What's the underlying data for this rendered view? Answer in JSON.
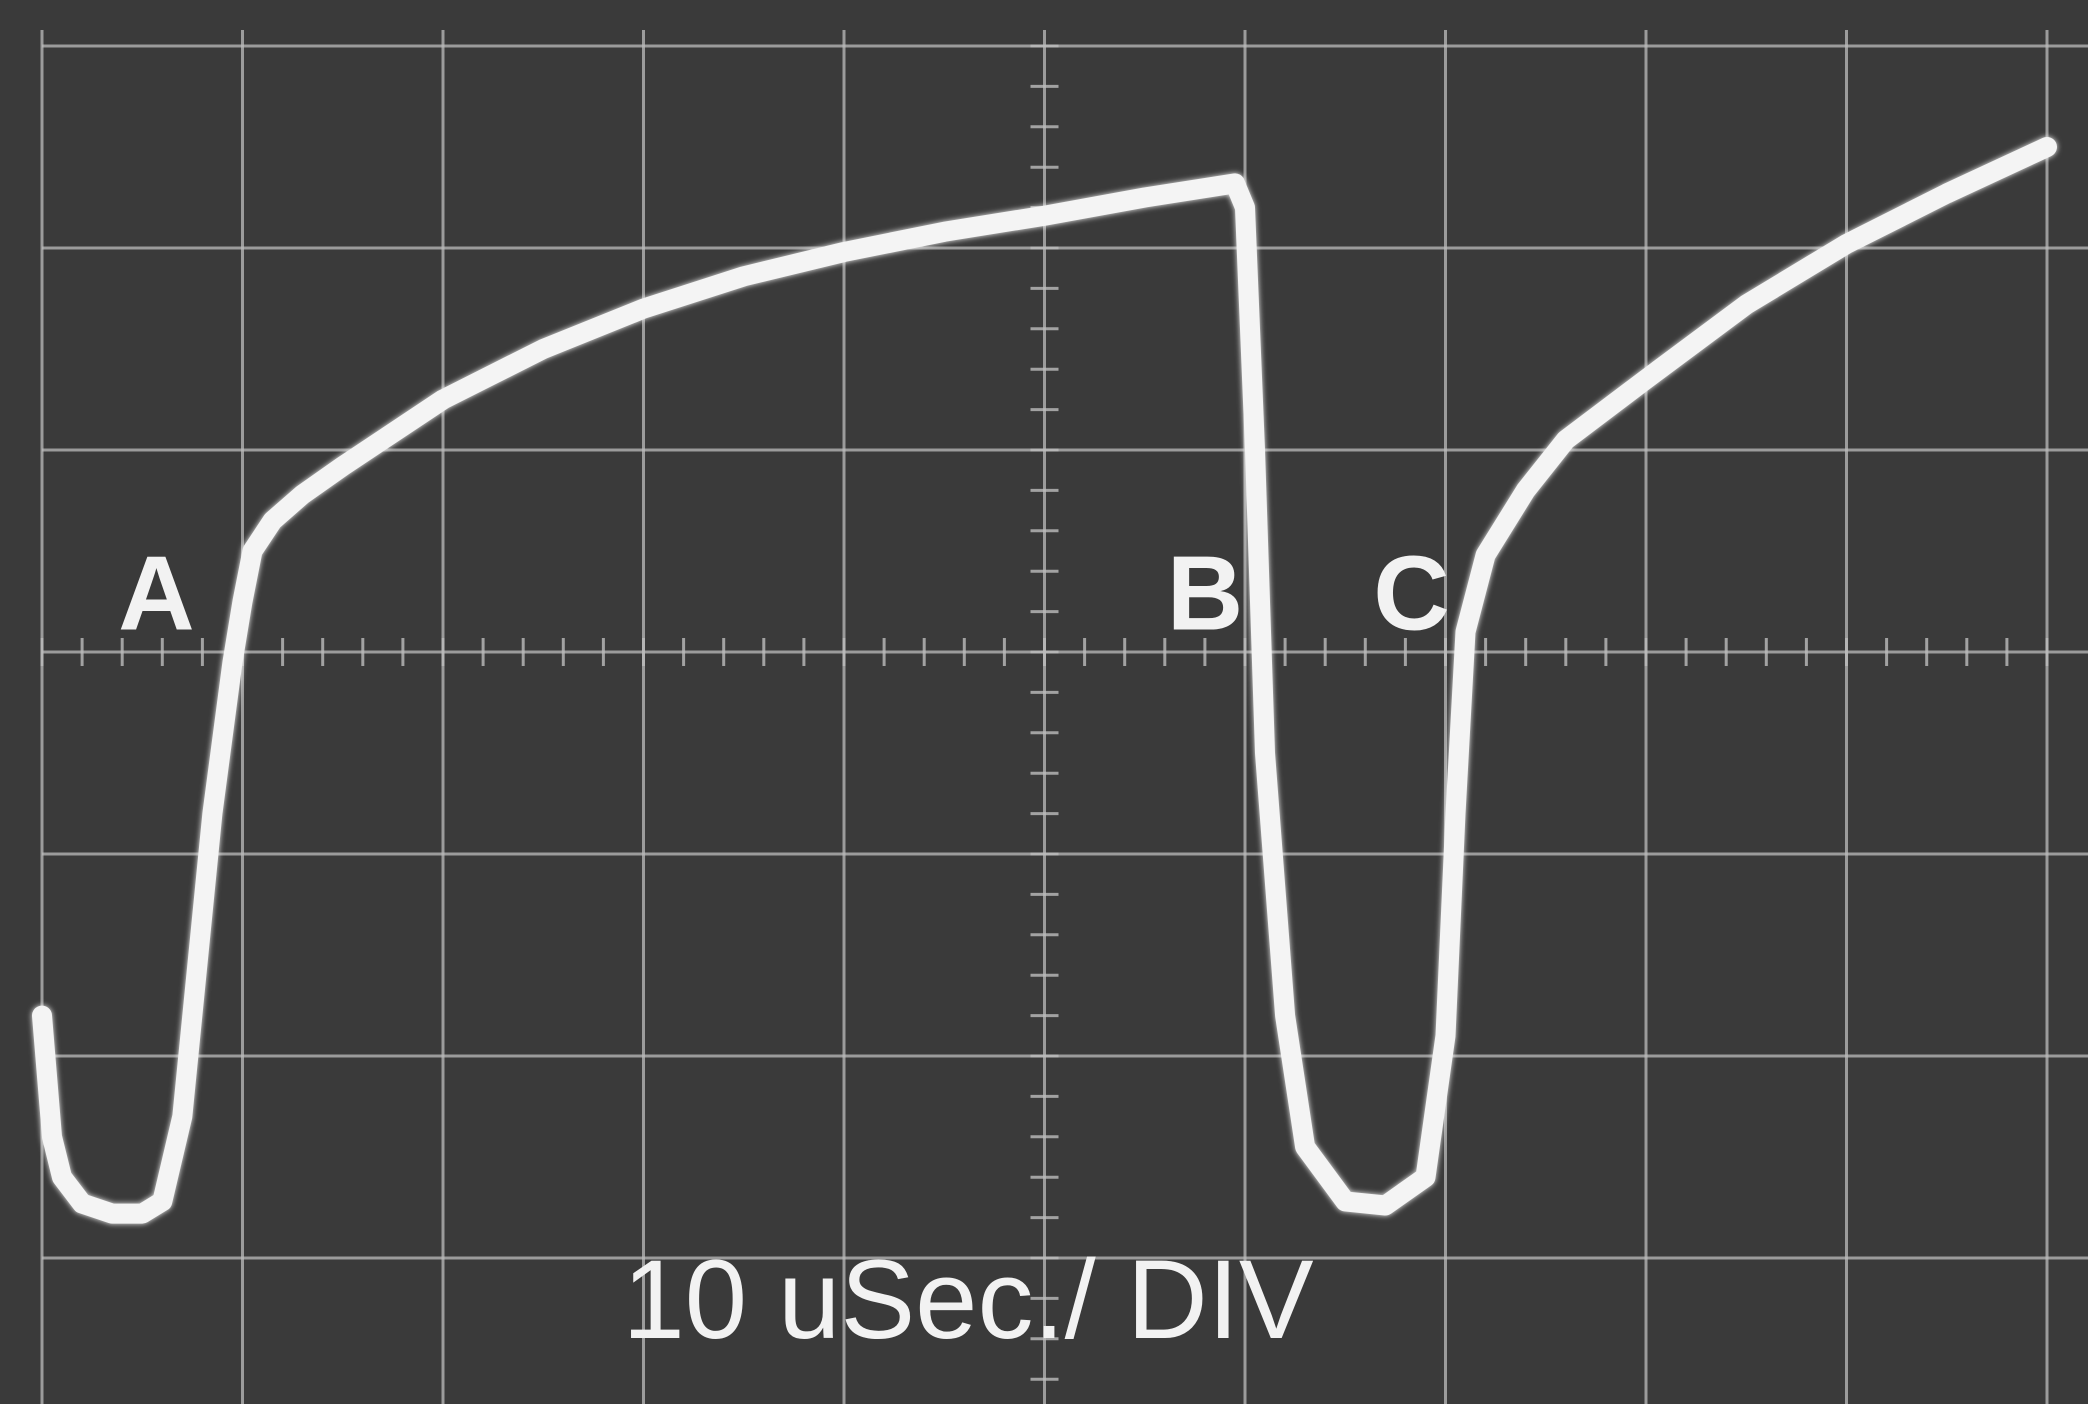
{
  "chart_data": {
    "type": "line",
    "title": "",
    "xlabel": "",
    "ylabel": "",
    "timebase_label": "10 uSec./ DIV",
    "x_units": "divisions",
    "y_units": "divisions",
    "xlim": [
      0,
      10
    ],
    "ylim": [
      -4,
      3
    ],
    "grid": true,
    "colors": {
      "screen": "#3a3a3a",
      "grid": "#bcbcbc",
      "trace": "#f4f4f4",
      "text": "#f2f2f2"
    },
    "series": [
      {
        "x": [
          0.0,
          0.05,
          0.1,
          0.2,
          0.35,
          0.5,
          0.6,
          0.7,
          0.85,
          0.95,
          1.0,
          1.05,
          1.15,
          1.3,
          1.5,
          2.0,
          2.5,
          3.0,
          3.5,
          4.0,
          4.5,
          5.0,
          5.5,
          5.95,
          6.0,
          6.05,
          6.1,
          6.2,
          6.3,
          6.5,
          6.7,
          6.9,
          7.0,
          7.05,
          7.1,
          7.2,
          7.4,
          7.6,
          8.0,
          8.5,
          9.0,
          9.5,
          10.0
        ],
        "y": [
          -1.8,
          -2.4,
          -2.6,
          -2.73,
          -2.78,
          -2.78,
          -2.72,
          -2.3,
          -0.8,
          -0.05,
          0.25,
          0.5,
          0.65,
          0.78,
          0.92,
          1.25,
          1.5,
          1.7,
          1.86,
          1.98,
          2.08,
          2.16,
          2.25,
          2.32,
          2.2,
          1.0,
          -0.5,
          -1.8,
          -2.45,
          -2.72,
          -2.74,
          -2.6,
          -1.9,
          -0.8,
          0.1,
          0.48,
          0.8,
          1.05,
          1.35,
          1.72,
          2.02,
          2.27,
          2.5
        ]
      }
    ],
    "annotations": [
      {
        "text": "A",
        "x": 0.72,
        "y": 0.28
      },
      {
        "text": "B",
        "x": 5.95,
        "y": 0.28
      },
      {
        "text": "C",
        "x": 6.98,
        "y": 0.28
      }
    ]
  }
}
